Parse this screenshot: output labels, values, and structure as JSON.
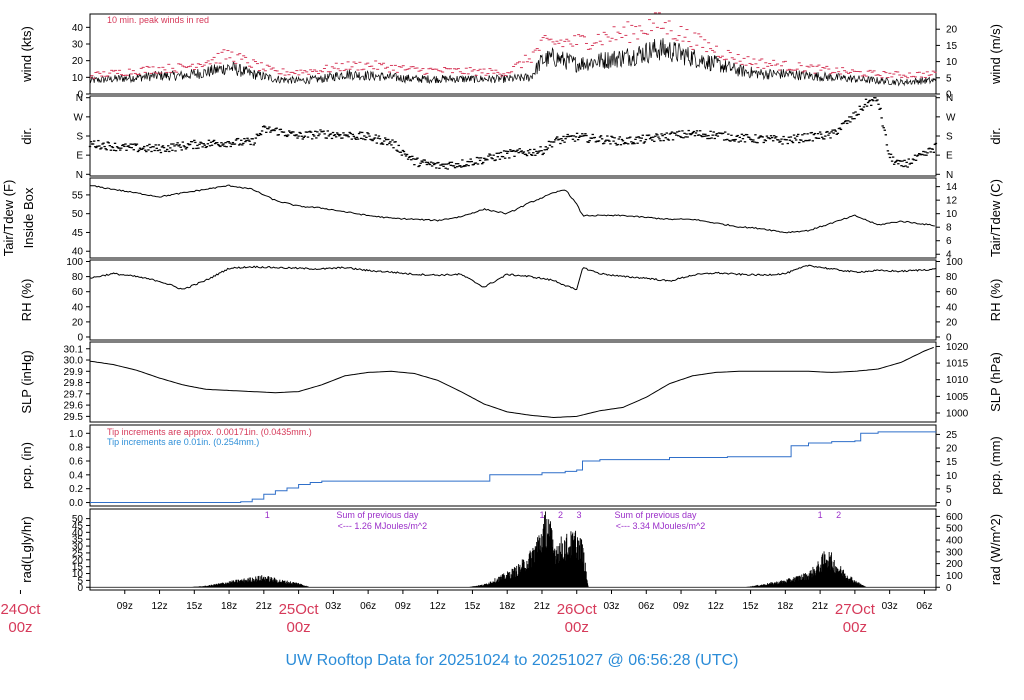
{
  "title": "UW Rooftop Data for 20251024  to  20251027 @ 06:56:28  (UTC)",
  "colors": {
    "title": "#2b8cd8",
    "date_labels": "#d63a5a",
    "peak_wind": "#d63a5a",
    "precip_line": "#2f6fc9",
    "note_red": "#d63a5a",
    "note_blue": "#2f8fd8",
    "radiation_notes": "#9b2fc9"
  },
  "x_axis": {
    "start_hour": 6.0,
    "end_hour": 79.0,
    "ticks": [
      {
        "hour": 9,
        "label": "09z"
      },
      {
        "hour": 12,
        "label": "12z"
      },
      {
        "hour": 15,
        "label": "15z"
      },
      {
        "hour": 18,
        "label": "18z"
      },
      {
        "hour": 21,
        "label": "21z"
      },
      {
        "hour": 27,
        "label": "03z"
      },
      {
        "hour": 30,
        "label": "06z"
      },
      {
        "hour": 33,
        "label": "09z"
      },
      {
        "hour": 36,
        "label": "12z"
      },
      {
        "hour": 39,
        "label": "15z"
      },
      {
        "hour": 42,
        "label": "18z"
      },
      {
        "hour": 45,
        "label": "21z"
      },
      {
        "hour": 51,
        "label": "03z"
      },
      {
        "hour": 54,
        "label": "06z"
      },
      {
        "hour": 57,
        "label": "09z"
      },
      {
        "hour": 60,
        "label": "12z"
      },
      {
        "hour": 63,
        "label": "15z"
      },
      {
        "hour": 66,
        "label": "18z"
      },
      {
        "hour": 69,
        "label": "21z"
      },
      {
        "hour": 75,
        "label": "03z"
      },
      {
        "hour": 78,
        "label": "06z"
      }
    ],
    "date_labels": [
      {
        "hour": 0,
        "line1": "24Oct",
        "line2": "00z"
      },
      {
        "hour": 24,
        "line1": "25Oct",
        "line2": "00z"
      },
      {
        "hour": 48,
        "line1": "26Oct",
        "line2": "00z"
      },
      {
        "hour": 72,
        "line1": "27Oct",
        "line2": "00z"
      }
    ]
  },
  "panels": {
    "wind": {
      "left_label": "wind (kts)",
      "right_label": "wind (m/s)",
      "left_ticks": [
        "0",
        "10",
        "20",
        "30",
        "40"
      ],
      "left_values": [
        0,
        10,
        20,
        30,
        40
      ],
      "ylim": [
        0,
        48
      ],
      "right_ticks": [
        "0",
        "5",
        "10",
        "15",
        "20"
      ],
      "right_values": [
        0,
        5,
        10,
        15,
        20
      ],
      "note": "10 min. peak winds in red"
    },
    "direction": {
      "left_label": "dir.",
      "right_label": "dir.",
      "ticks": [
        "N",
        "E",
        "S",
        "W",
        "N"
      ],
      "values": [
        0,
        90,
        180,
        270,
        360
      ],
      "ylim": [
        -8,
        368
      ]
    },
    "temperature": {
      "left_label_1": "Tair/Tdew (F)",
      "left_label_2": "Inside Box",
      "right_label": "Tair/Tdew (C)",
      "left_ticks": [
        "40",
        "45",
        "50",
        "55"
      ],
      "left_values": [
        40,
        45,
        50,
        55
      ],
      "ylim": [
        38.2,
        59.5
      ],
      "right_ticks": [
        "4",
        "6",
        "8",
        "10",
        "12",
        "14"
      ],
      "right_values": [
        4,
        6,
        8,
        10,
        12,
        14
      ]
    },
    "humidity": {
      "left_label": "RH (%)",
      "right_label": "RH (%)",
      "ticks": [
        "0",
        "20",
        "40",
        "60",
        "80",
        "100"
      ],
      "values": [
        0,
        20,
        40,
        60,
        80,
        100
      ],
      "ylim": [
        -4,
        102
      ]
    },
    "pressure": {
      "left_label": "SLP (inHg)",
      "right_label": "SLP (hPa)",
      "left_ticks": [
        "29.5",
        "29.6",
        "29.7",
        "29.8",
        "29.9",
        "30.0",
        "30.1"
      ],
      "left_values": [
        29.5,
        29.6,
        29.7,
        29.8,
        29.9,
        30.0,
        30.1
      ],
      "ylim": [
        29.45,
        30.16
      ],
      "right_ticks": [
        "1000",
        "1005",
        "1010",
        "1015",
        "1020"
      ],
      "right_values": [
        1000,
        1005,
        1010,
        1015,
        1020
      ]
    },
    "precip": {
      "left_label": "pcp. (in)",
      "right_label": "pcp. (mm)",
      "left_ticks": [
        "0.0",
        "0.2",
        "0.4",
        "0.6",
        "0.8",
        "1.0"
      ],
      "left_values": [
        0,
        0.2,
        0.4,
        0.6,
        0.8,
        1.0
      ],
      "ylim": [
        -0.05,
        1.12
      ],
      "right_ticks": [
        "0",
        "5",
        "10",
        "15",
        "20",
        "25"
      ],
      "right_values": [
        0,
        5,
        10,
        15,
        20,
        25
      ],
      "note_red": "Tip increments are approx. 0.00171in. (0.0435mm.)",
      "note_blue": "Tip increments are 0.01in. (0.254mm.)"
    },
    "radiation": {
      "left_label": "rad(Lgly/hr)",
      "right_label": "rad (W/m^2)",
      "left_ticks": [
        "0",
        "5",
        "10",
        "15",
        "20",
        "25",
        "30",
        "35",
        "40",
        "45",
        "50"
      ],
      "left_values": [
        0,
        5,
        10,
        15,
        20,
        25,
        30,
        35,
        40,
        45,
        50
      ],
      "ylim": [
        -2,
        57
      ],
      "right_ticks": [
        "0",
        "100",
        "200",
        "300",
        "400",
        "500",
        "600"
      ],
      "right_values": [
        0,
        100,
        200,
        300,
        400,
        500,
        600
      ],
      "sum_notes": [
        {
          "hour": 29.5,
          "line1": "Sum of previous day",
          "line2": "<--- 1.26 MJoules/m^2"
        },
        {
          "hour": 53.5,
          "line1": "Sum of previous day",
          "line2": "<--- 3.34 MJoules/m^2"
        }
      ],
      "peak_marks": [
        {
          "hour": 21.3,
          "label": "1"
        },
        {
          "hour": 45.0,
          "label": "1"
        },
        {
          "hour": 46.6,
          "label": "2"
        },
        {
          "hour": 48.2,
          "label": "3"
        },
        {
          "hour": 69.0,
          "label": "1"
        },
        {
          "hour": 70.6,
          "label": "2"
        }
      ]
    }
  },
  "chart_data": {
    "type": "line",
    "title": "UW Rooftop Data for 20251024  to  20251027 @ 06:56:28  (UTC)",
    "x_units": "hours since 20251024 00z",
    "series": [
      {
        "name": "wind (kts)",
        "x": [
          6,
          8,
          10,
          12,
          14,
          16,
          18,
          19,
          20,
          22,
          24,
          26,
          28,
          30,
          32,
          34,
          36,
          38,
          40,
          42,
          44,
          45,
          46,
          48,
          50,
          52,
          54,
          55,
          56,
          58,
          60,
          62,
          64,
          66,
          68,
          70,
          72,
          74,
          76,
          78,
          79
        ],
        "y": [
          8,
          9,
          10,
          11,
          11,
          13,
          16,
          14,
          12,
          9,
          8,
          9,
          12,
          11,
          10,
          9,
          9,
          9,
          9,
          9,
          10,
          20,
          22,
          18,
          20,
          22,
          25,
          27,
          26,
          22,
          18,
          14,
          12,
          12,
          11,
          10,
          9,
          8,
          7,
          8,
          8
        ]
      },
      {
        "name": "10 min. peak winds in red",
        "x": [
          6,
          10,
          14,
          18,
          22,
          26,
          30,
          34,
          38,
          42,
          45,
          48,
          52,
          55,
          58,
          62,
          66,
          70,
          74,
          78
        ],
        "y": [
          11,
          14,
          16,
          24,
          13,
          15,
          18,
          15,
          14,
          13,
          30,
          33,
          38,
          44,
          33,
          21,
          17,
          14,
          12,
          12
        ]
      },
      {
        "name": "dir.",
        "x": [
          6,
          9,
          12,
          15,
          18,
          20,
          21,
          22,
          24,
          26,
          28,
          30,
          32,
          34,
          36,
          38,
          40,
          42,
          44,
          45,
          46,
          48,
          50,
          52,
          54,
          56,
          58,
          60,
          62,
          64,
          66,
          68,
          70,
          72,
          73,
          74,
          75,
          76,
          78,
          79
        ],
        "y": [
          145,
          125,
          120,
          140,
          150,
          150,
          210,
          205,
          180,
          190,
          185,
          175,
          150,
          60,
          40,
          50,
          70,
          95,
          105,
          110,
          155,
          175,
          165,
          155,
          165,
          180,
          190,
          185,
          170,
          165,
          160,
          175,
          185,
          275,
          335,
          350,
          80,
          40,
          90,
          130
        ]
      },
      {
        "name": "Tair/Tdew (F)",
        "x": [
          6,
          8,
          10,
          12,
          14,
          16,
          18,
          20,
          22,
          24,
          26,
          28,
          30,
          32,
          34,
          36,
          38,
          40,
          42,
          44,
          46,
          47,
          48,
          48.5,
          50,
          52,
          54,
          56,
          58,
          60,
          62,
          64,
          66,
          68,
          70,
          72,
          74,
          76,
          78,
          79
        ],
        "y": [
          57.5,
          56.5,
          55.5,
          54.5,
          55.5,
          56.5,
          57.5,
          56.5,
          53.5,
          52.0,
          51.5,
          50.5,
          49.5,
          48.8,
          48.5,
          48.2,
          49.2,
          51.2,
          50.0,
          53.0,
          55.5,
          56.5,
          52.5,
          49.5,
          49.5,
          49.5,
          49.0,
          48.5,
          48.5,
          47.5,
          46.5,
          46.0,
          45.0,
          45.5,
          47.5,
          49.5,
          47.0,
          48.0,
          47.2,
          46.8
        ]
      },
      {
        "name": "RH (%)",
        "x": [
          6,
          8,
          10,
          12,
          14,
          16,
          18,
          20,
          22,
          24,
          26,
          28,
          30,
          32,
          34,
          36,
          38,
          40,
          42,
          44,
          46,
          48,
          48.5,
          50,
          52,
          54,
          56,
          58,
          60,
          62,
          64,
          66,
          68,
          70,
          72,
          74,
          76,
          78,
          79
        ],
        "y": [
          78,
          84,
          80,
          74,
          63,
          75,
          91,
          93,
          92,
          91,
          90,
          92,
          88,
          86,
          83,
          82,
          83,
          66,
          83,
          80,
          75,
          62,
          92,
          84,
          80,
          78,
          74,
          82,
          85,
          83,
          82,
          84,
          95,
          90,
          86,
          88,
          87,
          89,
          90
        ]
      },
      {
        "name": "SLP (inHg)",
        "x": [
          6,
          8,
          10,
          12,
          14,
          16,
          18,
          20,
          22,
          24,
          26,
          28,
          30,
          32,
          34,
          36,
          38,
          40,
          42,
          44,
          46,
          48,
          50,
          52,
          54,
          56,
          58,
          60,
          62,
          64,
          66,
          68,
          70,
          72,
          74,
          76,
          78,
          79
        ],
        "y": [
          29.99,
          29.96,
          29.91,
          29.84,
          29.78,
          29.74,
          29.73,
          29.72,
          29.71,
          29.72,
          29.78,
          29.86,
          29.89,
          29.9,
          29.88,
          29.82,
          29.72,
          29.61,
          29.54,
          29.51,
          29.49,
          29.5,
          29.55,
          29.58,
          29.67,
          29.79,
          29.86,
          29.89,
          29.9,
          29.9,
          29.9,
          29.9,
          29.89,
          29.9,
          29.92,
          29.98,
          30.08,
          30.12
        ]
      },
      {
        "name": "pcp. (in)",
        "x": [
          6,
          18,
          19,
          20,
          21,
          22,
          23,
          24,
          25,
          26,
          30,
          35,
          40,
          40.5,
          45,
          47,
          48,
          48.5,
          50,
          56,
          60,
          61,
          64,
          66,
          66.5,
          68,
          70,
          72,
          72.5,
          74,
          76,
          78,
          79
        ],
        "y": [
          0,
          0,
          0.01,
          0.05,
          0.12,
          0.17,
          0.21,
          0.26,
          0.29,
          0.31,
          0.31,
          0.31,
          0.31,
          0.4,
          0.43,
          0.45,
          0.47,
          0.6,
          0.62,
          0.65,
          0.65,
          0.66,
          0.66,
          0.66,
          0.82,
          0.86,
          0.88,
          0.89,
          1.0,
          1.02,
          1.02,
          1.02,
          1.02
        ]
      },
      {
        "name": "rad(Lgly/hr)",
        "x": [
          14.5,
          16,
          18,
          19.5,
          21,
          22.5,
          24,
          25,
          38.5,
          40,
          42,
          43,
          44,
          45,
          45.5,
          46,
          47,
          47.5,
          48,
          48.5,
          49,
          62.5,
          64,
          66,
          68,
          69,
          69.5,
          70,
          70.5,
          71,
          72,
          73
        ],
        "y": [
          0,
          1,
          4,
          6,
          8,
          5,
          3,
          0,
          0,
          2,
          10,
          15,
          24,
          42,
          55,
          30,
          34,
          36,
          38,
          30,
          0,
          0,
          2,
          5,
          10,
          18,
          26,
          22,
          16,
          12,
          5,
          0
        ]
      }
    ]
  }
}
